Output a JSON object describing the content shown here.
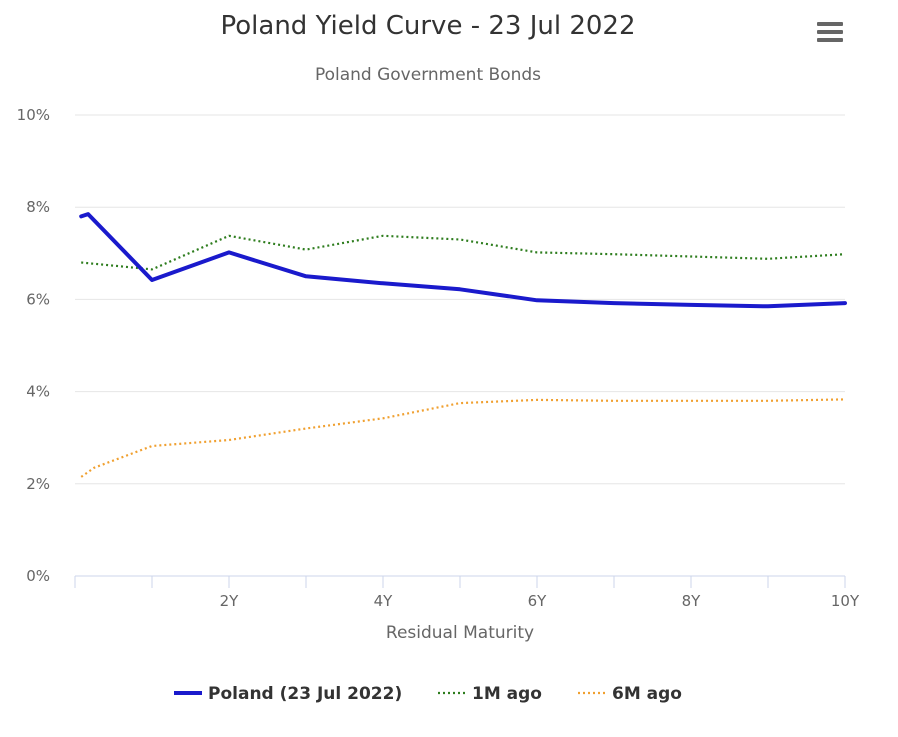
{
  "chart_data": {
    "type": "line",
    "title": "Poland Yield Curve - 23 Jul 2022",
    "subtitle": "Poland Government Bonds",
    "xlabel": "Residual Maturity",
    "ylabel": "",
    "xlim": [
      0,
      10
    ],
    "ylim": [
      0,
      10
    ],
    "x_tick_values": [
      2,
      4,
      6,
      8,
      10
    ],
    "x_tick_labels": [
      "2Y",
      "4Y",
      "6Y",
      "8Y",
      "10Y"
    ],
    "y_tick_values": [
      0,
      2,
      4,
      6,
      8,
      10
    ],
    "y_tick_labels": [
      "0%",
      "2%",
      "4%",
      "6%",
      "8%",
      "10%"
    ],
    "grid": true,
    "legend_position": "bottom",
    "series": [
      {
        "name": "Poland (23 Jul 2022)",
        "color": "#1a1acc",
        "style": "solid",
        "x": [
          0.08,
          0.17,
          1,
          2,
          3,
          4,
          5,
          6,
          7,
          8,
          9,
          10
        ],
        "values": [
          7.8,
          7.85,
          6.42,
          7.02,
          6.5,
          6.35,
          6.22,
          5.98,
          5.92,
          5.88,
          5.85,
          5.92
        ]
      },
      {
        "name": "1M ago",
        "color": "#2e7d1e",
        "style": "dotted",
        "x": [
          0.08,
          1,
          2,
          3,
          4,
          5,
          6,
          7,
          8,
          9,
          10
        ],
        "values": [
          6.8,
          6.65,
          7.38,
          7.08,
          7.38,
          7.3,
          7.02,
          6.98,
          6.93,
          6.88,
          6.98
        ]
      },
      {
        "name": "6M ago",
        "color": "#f0a030",
        "style": "dotted",
        "x": [
          0.08,
          0.25,
          1,
          2,
          3,
          4,
          5,
          6,
          7,
          8,
          9,
          10
        ],
        "values": [
          2.15,
          2.35,
          2.82,
          2.95,
          3.2,
          3.42,
          3.75,
          3.82,
          3.8,
          3.8,
          3.8,
          3.83
        ]
      }
    ]
  },
  "menu": {
    "icon": "hamburger-menu-icon"
  }
}
